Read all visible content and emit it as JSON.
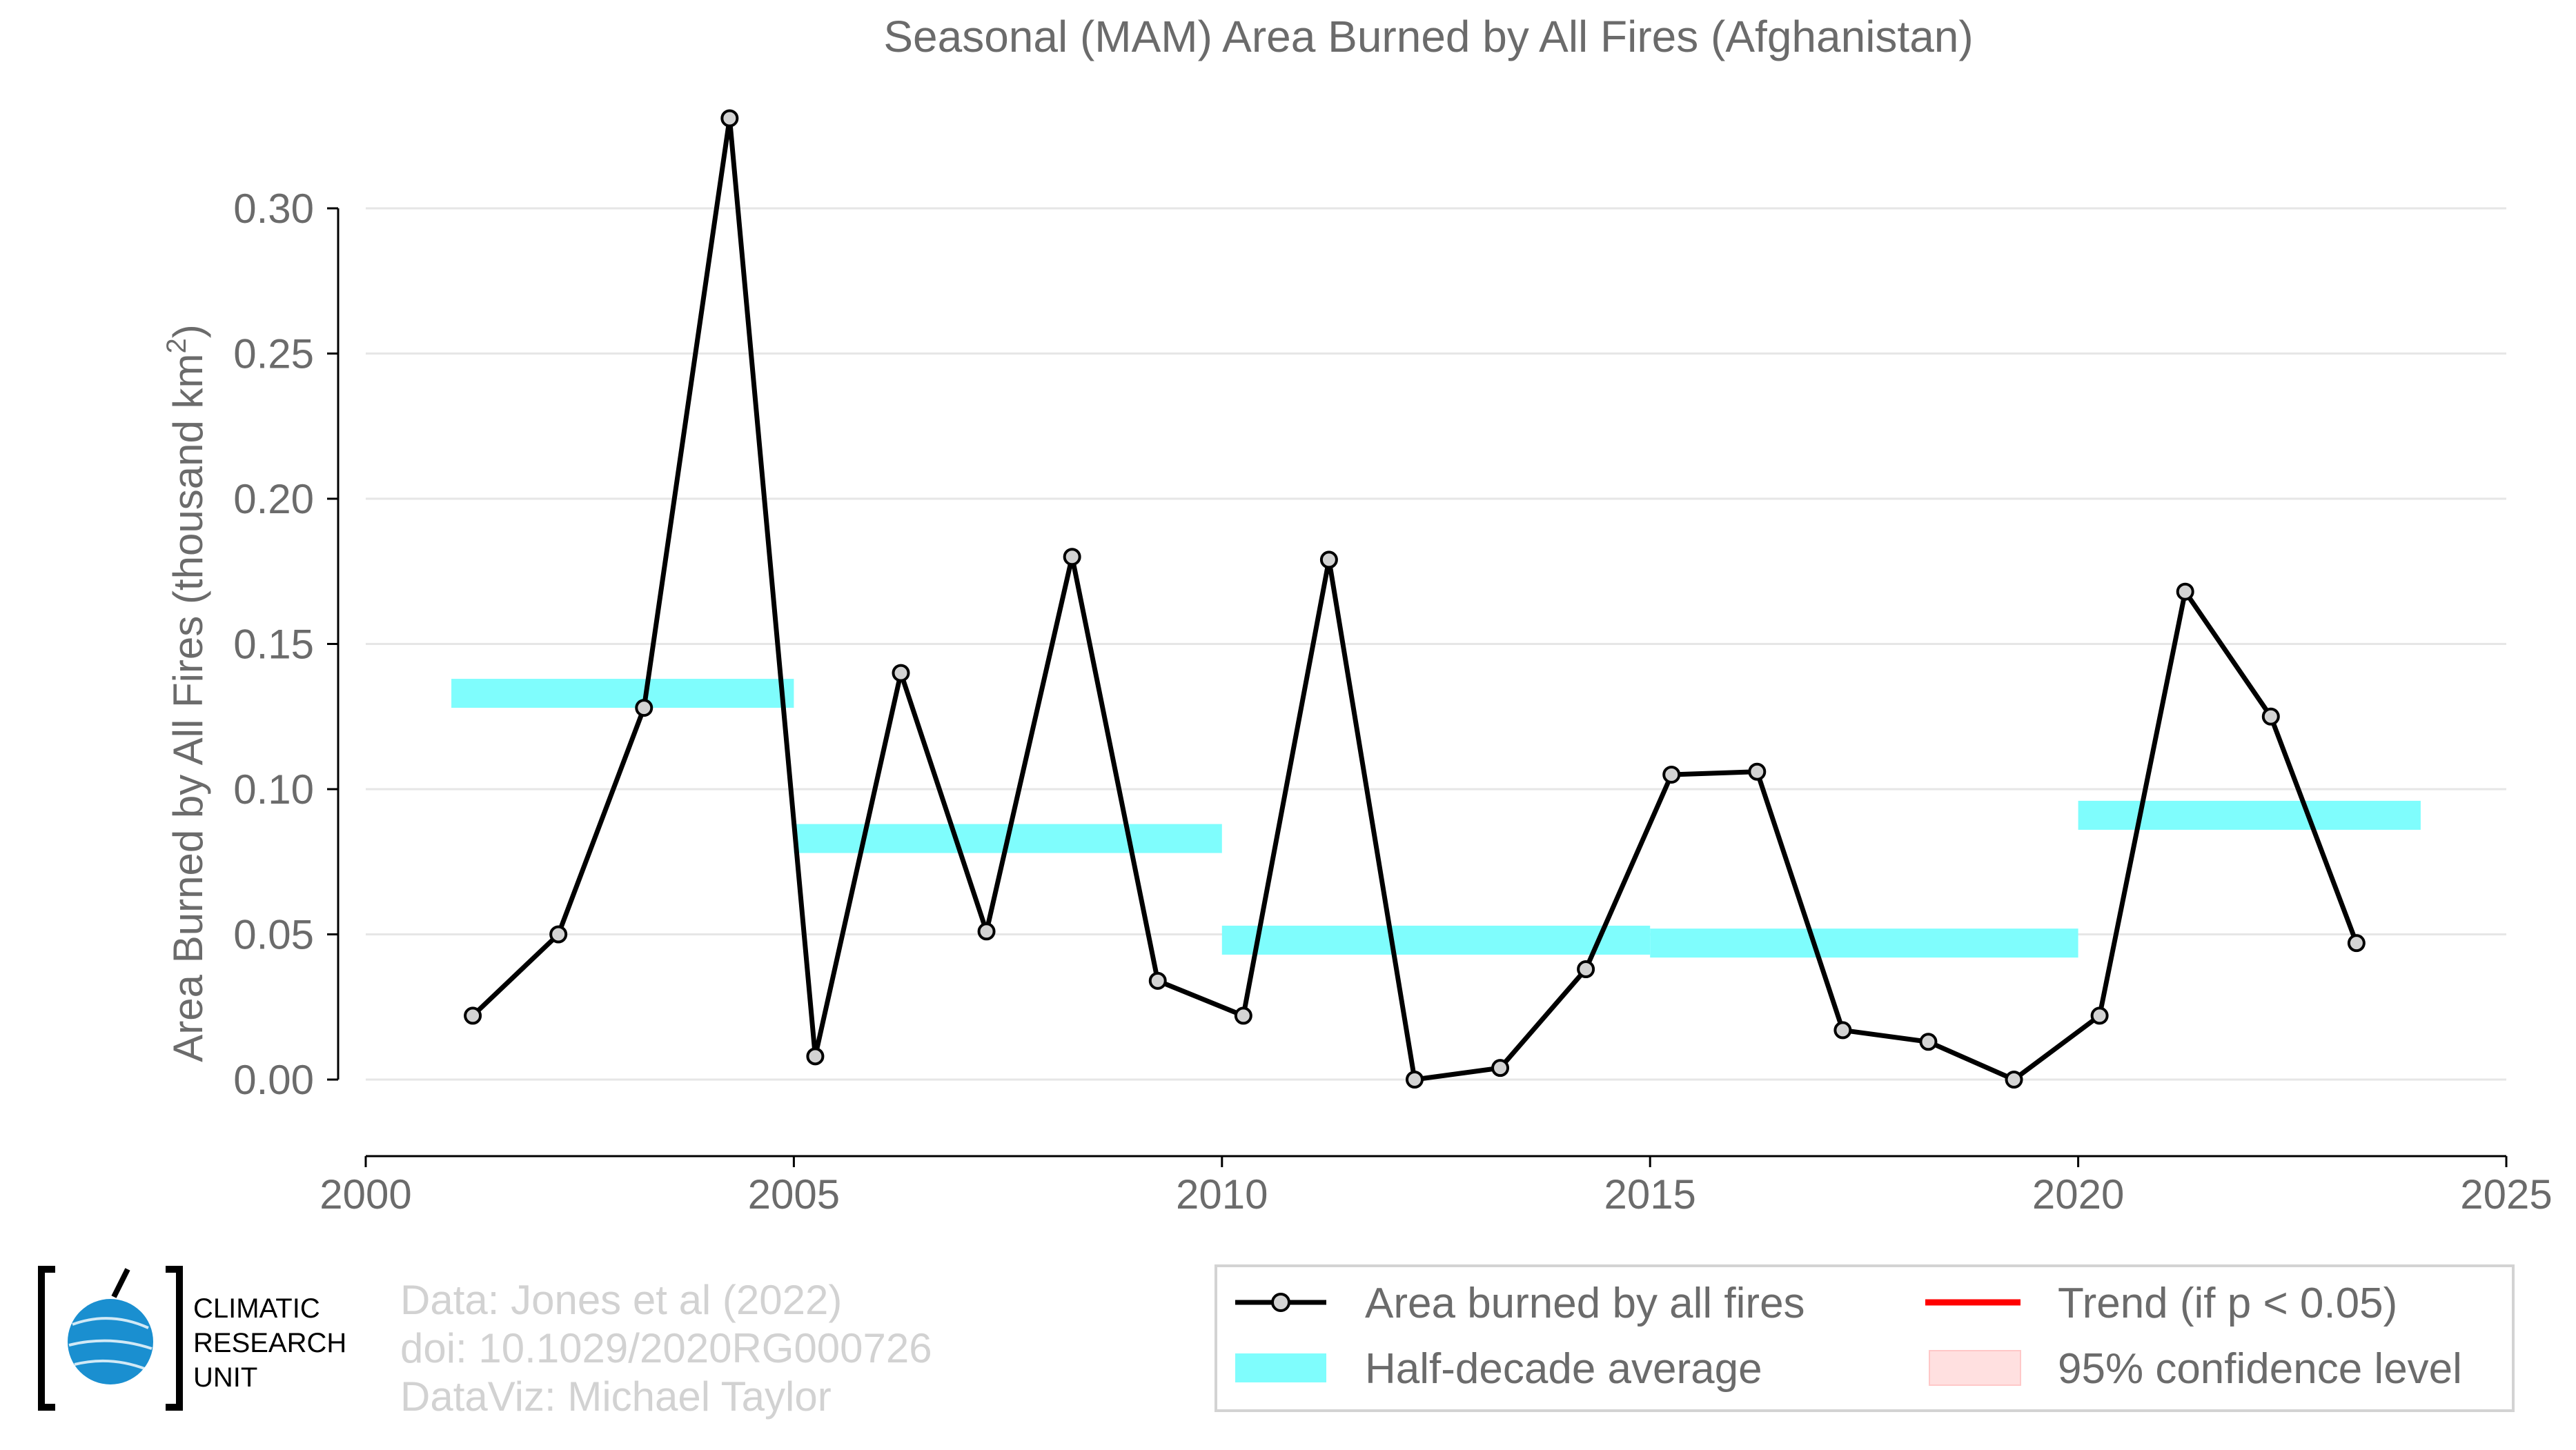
{
  "chart_data": {
    "type": "line",
    "title": "Seasonal (MAM) Area Burned by All Fires (Afghanistan)",
    "xlabel": "",
    "ylabel_main": "Area Burned by All Fires (thousand km",
    "ylabel_sup": "2",
    "ylabel_close": ")",
    "xlim": [
      2000,
      2025
    ],
    "ylim": [
      -0.025,
      0.33
    ],
    "x_ticks": [
      2000,
      2005,
      2010,
      2015,
      2020,
      2025
    ],
    "y_ticks": [
      0.0,
      0.05,
      0.1,
      0.15,
      0.2,
      0.25,
      0.3
    ],
    "y_tick_labels": [
      "0.00",
      "0.05",
      "0.10",
      "0.15",
      "0.20",
      "0.25",
      "0.30"
    ],
    "grid": "horizontal",
    "series": [
      {
        "name": "Area burned by all fires",
        "color": "#000000",
        "marker_fill": "#d3d3d3",
        "x": [
          2001.25,
          2002.25,
          2003.25,
          2004.25,
          2005.25,
          2006.25,
          2007.25,
          2008.25,
          2009.25,
          2010.25,
          2011.25,
          2012.25,
          2013.25,
          2014.25,
          2015.25,
          2016.25,
          2017.25,
          2018.25,
          2019.25,
          2020.25,
          2021.25,
          2022.25,
          2023.25
        ],
        "values": [
          0.022,
          0.05,
          0.128,
          0.331,
          0.008,
          0.14,
          0.051,
          0.18,
          0.034,
          0.022,
          0.179,
          0.0,
          0.004,
          0.038,
          0.105,
          0.106,
          0.017,
          0.013,
          0.0,
          0.022,
          0.168,
          0.125,
          0.047
        ]
      }
    ],
    "half_decade_averages": {
      "name": "Half-decade average",
      "color": "#7ffdfd",
      "segments": [
        {
          "x_start": 2001,
          "x_end": 2005,
          "value": 0.133
        },
        {
          "x_start": 2005,
          "x_end": 2010,
          "value": 0.083
        },
        {
          "x_start": 2010,
          "x_end": 2015,
          "value": 0.048
        },
        {
          "x_start": 2015,
          "x_end": 2020,
          "value": 0.047
        },
        {
          "x_start": 2020,
          "x_end": 2024,
          "value": 0.091
        }
      ]
    },
    "legend": {
      "placement": "bottom-right",
      "entries": [
        {
          "label": "Area burned by all fires",
          "kind": "line-marker",
          "color": "#000000"
        },
        {
          "label": "Trend (if p < 0.05)",
          "kind": "line",
          "color": "#ff0000"
        },
        {
          "label": "Half-decade average",
          "kind": "band",
          "color": "#7ffdfd"
        },
        {
          "label": "95% confidence level",
          "kind": "band",
          "color": "#ffe0e0"
        }
      ]
    }
  },
  "credits": {
    "line1": "Data: Jones et al (2022)",
    "line2": "doi: 10.1029/2020RG000726",
    "line3": "DataViz: Michael Taylor"
  },
  "logo": {
    "line1": "CLIMATIC",
    "line2": "RESEARCH",
    "line3": "UNIT",
    "globe_color": "#1a8fd0"
  }
}
